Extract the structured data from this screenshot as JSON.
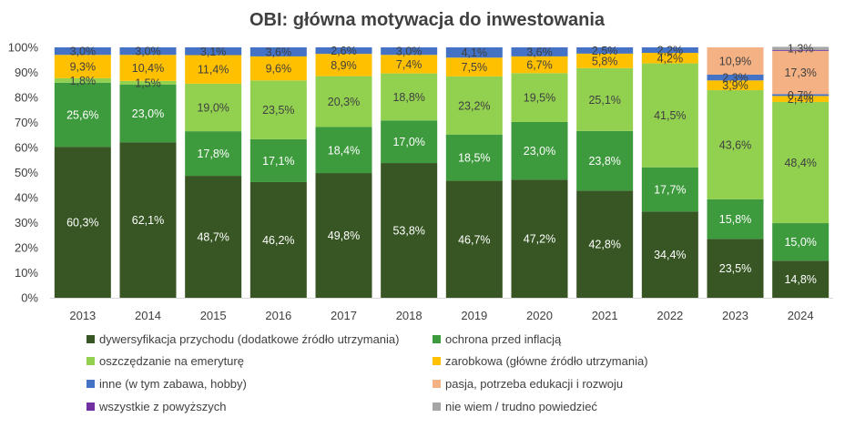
{
  "chart_data": {
    "type": "bar",
    "stacked": true,
    "title": "OBI: główna motywacja do inwestowania",
    "categories": [
      "2013",
      "2014",
      "2015",
      "2016",
      "2017",
      "2018",
      "2019",
      "2020",
      "2021",
      "2022",
      "2023",
      "2024"
    ],
    "ylim": [
      0,
      100
    ],
    "yticks": [
      "0%",
      "10%",
      "20%",
      "30%",
      "40%",
      "50%",
      "60%",
      "70%",
      "80%",
      "90%",
      "100%"
    ],
    "grid": false,
    "legend_position": "bottom",
    "series": [
      {
        "name": "dywersyfikacja przychodu (dodatkowe źródło utrzymania)",
        "color": "#375623",
        "values": [
          60.3,
          62.1,
          48.7,
          46.2,
          49.8,
          53.8,
          46.7,
          47.2,
          42.8,
          34.4,
          23.5,
          14.8
        ],
        "labels": [
          "60,3%",
          "62,1%",
          "48,7%",
          "46,2%",
          "49,8%",
          "53,8%",
          "46,7%",
          "47,2%",
          "42,8%",
          "34,4%",
          "23,5%",
          "14,8%"
        ]
      },
      {
        "name": "ochrona przed inflacją",
        "color": "#3d9a3d",
        "values": [
          25.6,
          23.0,
          17.8,
          17.1,
          18.4,
          17.0,
          18.5,
          23.0,
          23.8,
          17.7,
          15.8,
          15.0
        ],
        "labels": [
          "25,6%",
          "23,0%",
          "17,8%",
          "17,1%",
          "18,4%",
          "17,0%",
          "18,5%",
          "23,0%",
          "23,8%",
          "17,7%",
          "15,8%",
          "15,0%"
        ]
      },
      {
        "name": "oszczędzanie na emeryturę",
        "color": "#92d050",
        "values": [
          1.8,
          1.5,
          19.0,
          23.5,
          20.3,
          18.8,
          23.2,
          19.5,
          25.1,
          41.5,
          43.6,
          48.4
        ],
        "labels": [
          "1,8%",
          "1,5%",
          "19,0%",
          "23,5%",
          "20,3%",
          "18,8%",
          "23,2%",
          "19,5%",
          "25,1%",
          "41,5%",
          "43,6%",
          "48,4%"
        ]
      },
      {
        "name": "zarobkowa (główne źródło utrzymania)",
        "color": "#ffc000",
        "values": [
          9.3,
          10.4,
          11.4,
          9.6,
          8.9,
          7.4,
          7.5,
          6.7,
          5.8,
          4.2,
          3.9,
          2.4
        ],
        "labels": [
          "9,3%",
          "10,4%",
          "11,4%",
          "9,6%",
          "8,9%",
          "7,4%",
          "7,5%",
          "6,7%",
          "5,8%",
          "4,2%",
          "3,9%",
          "2,4%"
        ]
      },
      {
        "name": "inne (w tym zabawa, hobby)",
        "color": "#4472c4",
        "values": [
          3.0,
          3.0,
          3.1,
          3.6,
          2.6,
          3.0,
          4.1,
          3.6,
          2.5,
          2.2,
          2.3,
          0.7
        ],
        "labels": [
          "3,0%",
          "3,0%",
          "3,1%",
          "3,6%",
          "2,6%",
          "3,0%",
          "4,1%",
          "3,6%",
          "2,5%",
          "2,2%",
          "2,3%",
          "0,7%"
        ]
      },
      {
        "name": "pasja, potrzeba edukacji i rozwoju",
        "color": "#f4b183",
        "values": [
          0,
          0,
          0,
          0,
          0,
          0,
          0,
          0,
          0,
          0,
          10.9,
          17.3
        ],
        "labels": [
          "",
          "",
          "",
          "",
          "",
          "",
          "",
          "",
          "",
          "",
          "10,9%",
          "17,3%"
        ]
      },
      {
        "name": "wszystkie z powyższych",
        "color": "#7030a0",
        "values": [
          0,
          0,
          0,
          0,
          0,
          0,
          0,
          0,
          0,
          0,
          0,
          0.3
        ],
        "labels": [
          "",
          "",
          "",
          "",
          "",
          "",
          "",
          "",
          "",
          "",
          "",
          ""
        ]
      },
      {
        "name": "nie wiem / trudno powiedzieć",
        "color": "#a5a5a5",
        "values": [
          0,
          0,
          0,
          0,
          0,
          0,
          0,
          0,
          0,
          0,
          0,
          1.3
        ],
        "labels": [
          "",
          "",
          "",
          "",
          "",
          "",
          "",
          "",
          "",
          "",
          "",
          "1,3%"
        ]
      }
    ]
  }
}
